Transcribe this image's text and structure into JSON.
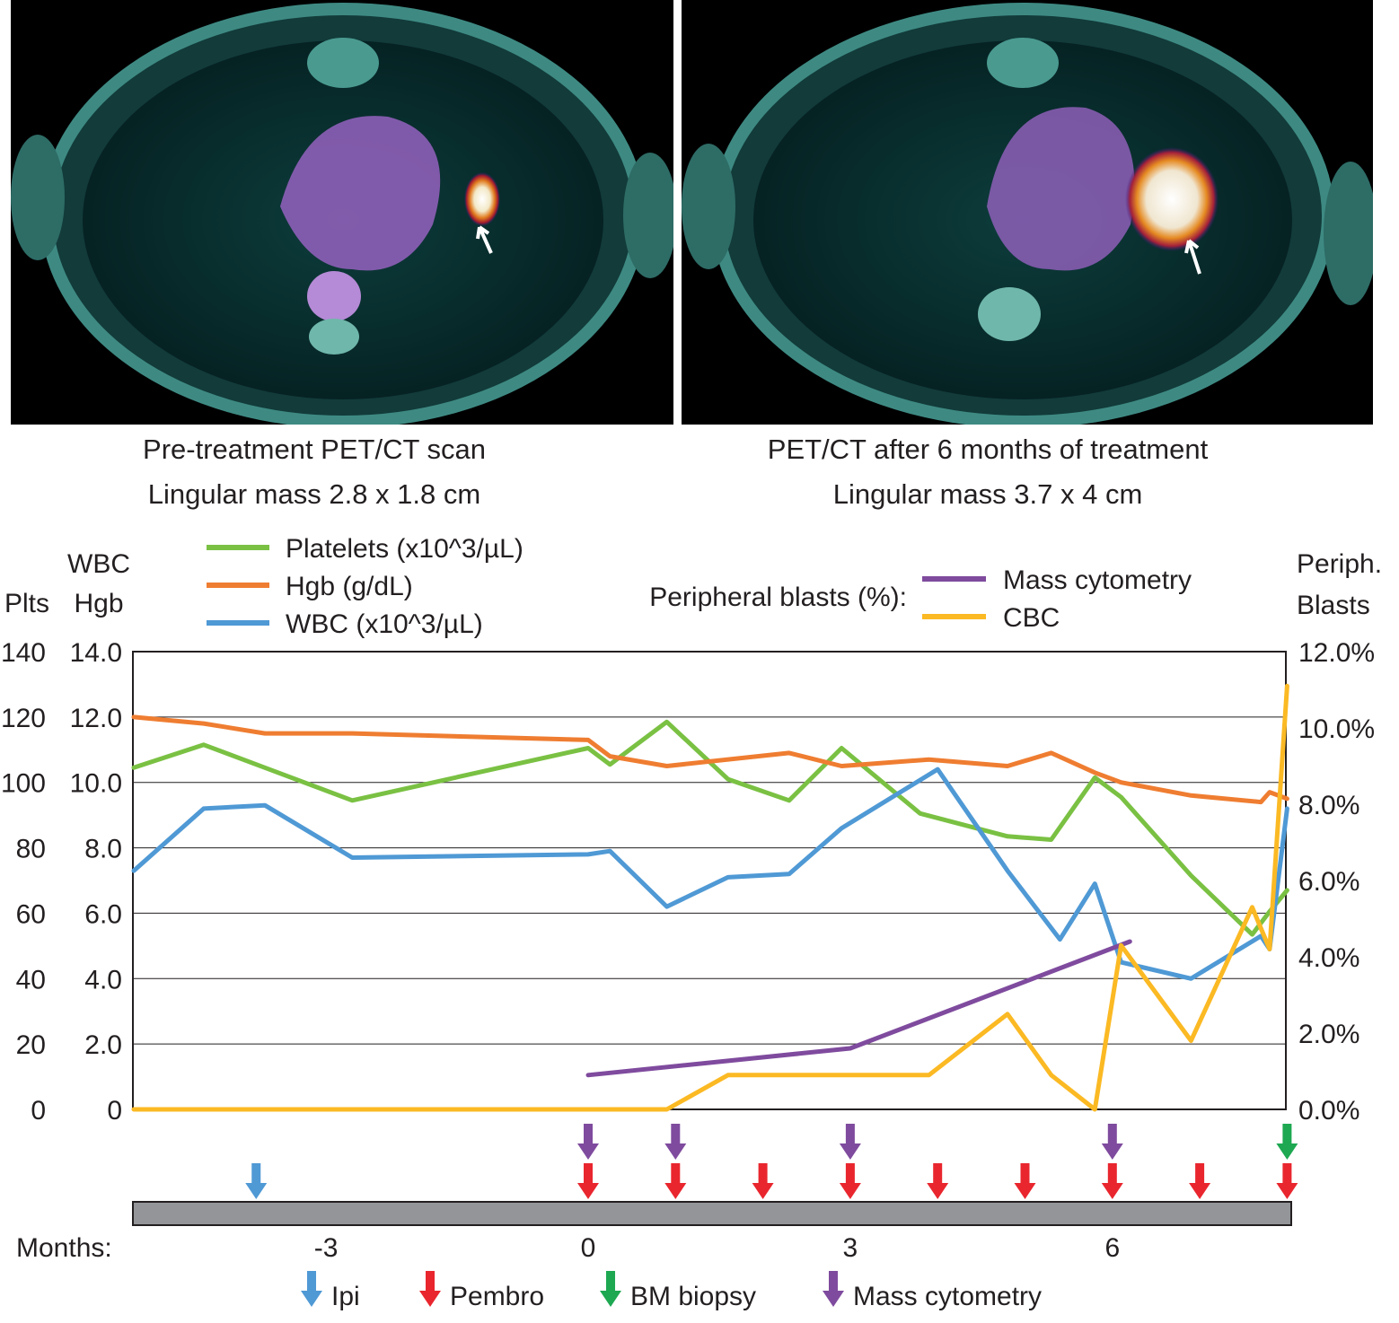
{
  "panels": [
    {
      "title": "Pre-treatment PET/CT scan",
      "subtitle": "Lingular mass 2.8 x 1.8 cm"
    },
    {
      "title": "PET/CT after 6 months of treatment",
      "subtitle": "Lingular mass 3.7 x 4 cm"
    }
  ],
  "chart_data": {
    "type": "line",
    "x_axis": {
      "label": "Months:",
      "ticks": [
        "-3",
        "0",
        "3",
        "6"
      ],
      "unit": "months"
    },
    "left_axes": [
      {
        "label_lines": [
          "Plts"
        ],
        "ticks": [
          "140",
          "120",
          "100",
          "80",
          "60",
          "40",
          "20",
          "0"
        ],
        "range": [
          0,
          140
        ]
      },
      {
        "label_lines": [
          "WBC",
          "Hgb"
        ],
        "ticks": [
          "14.0",
          "12.0",
          "10.0",
          "8.0",
          "6.0",
          "4.0",
          "2.0",
          "0"
        ],
        "range": [
          0,
          14
        ]
      }
    ],
    "right_axis": {
      "label_lines": [
        "Periph.",
        "Blasts"
      ],
      "ticks": [
        "12.0%",
        "10.0%",
        "8.0%",
        "6.0%",
        "4.0%",
        "2.0%",
        "0.0%"
      ],
      "range": [
        0,
        12
      ]
    },
    "grid": true,
    "legend_left": [
      {
        "name": "Platelets (x10^3/µL)",
        "color": "#7ac143"
      },
      {
        "name": "Hgb (g/dL)",
        "color": "#ef7d31"
      },
      {
        "name": "WBC (x10^3/µL)",
        "color": "#4f99d5"
      }
    ],
    "legend_right_title": "Peripheral blasts (%):",
    "legend_right": [
      {
        "name": "Mass cytometry",
        "color": "#7f4b9e"
      },
      {
        "name": "CBC",
        "color": "#fbb923"
      }
    ],
    "series": [
      {
        "key": "platelets",
        "axis": "plts",
        "color": "#7ac143",
        "x": [
          -5.2,
          -4.4,
          -3.7,
          -2.7,
          0,
          0.25,
          0.9,
          1.6,
          2.3,
          2.9,
          3.8,
          4.8,
          5.3,
          5.8,
          6.1,
          6.9,
          7.6,
          7.8,
          8.0
        ],
        "y": [
          104.5,
          111.5,
          104.5,
          94.5,
          110.5,
          105.5,
          118.5,
          101,
          94.5,
          110.5,
          90.5,
          83.5,
          82.5,
          101.5,
          95.5,
          71.5,
          53.5,
          60.5,
          67
        ]
      },
      {
        "key": "hgb",
        "axis": "hgb",
        "color": "#ef7d31",
        "x": [
          -5.2,
          -4.4,
          -3.7,
          -2.7,
          0,
          0.25,
          0.9,
          2.3,
          2.9,
          3.9,
          4.8,
          5.3,
          5.8,
          6.1,
          6.9,
          7.7,
          7.8,
          8.0
        ],
        "y": [
          12.0,
          11.8,
          11.5,
          11.5,
          11.3,
          10.8,
          10.5,
          10.9,
          10.5,
          10.7,
          10.5,
          10.9,
          10.3,
          10.0,
          9.6,
          9.4,
          9.7,
          9.5
        ]
      },
      {
        "key": "wbc",
        "axis": "wbc",
        "color": "#4f99d5",
        "x": [
          -5.2,
          -4.4,
          -3.7,
          -2.7,
          0,
          0.25,
          0.9,
          1.6,
          2.3,
          2.9,
          4.0,
          4.8,
          5.4,
          5.8,
          6.1,
          6.9,
          7.7,
          7.8,
          8.0
        ],
        "y": [
          7.3,
          9.2,
          9.3,
          7.7,
          7.8,
          7.9,
          6.2,
          7.1,
          7.2,
          8.6,
          10.4,
          7.3,
          5.2,
          6.9,
          4.5,
          4.0,
          5.3,
          4.9,
          9.2
        ]
      },
      {
        "key": "mass_cytometry",
        "axis": "blasts",
        "color": "#7f4b9e",
        "x": [
          0,
          3,
          6.2
        ],
        "y": [
          0.9,
          1.6,
          4.4
        ]
      },
      {
        "key": "cbc",
        "axis": "blasts",
        "color": "#fbb923",
        "x": [
          -5.2,
          0,
          0.9,
          1.6,
          2.3,
          3.0,
          3.9,
          4.8,
          5.3,
          5.8,
          6.1,
          6.9,
          7.6,
          7.8,
          8.0
        ],
        "y": [
          0,
          0,
          0,
          0.9,
          0.9,
          0.9,
          0.9,
          2.5,
          0.9,
          0,
          4.3,
          1.8,
          5.3,
          4.2,
          11.1
        ]
      }
    ],
    "events": {
      "ipi": [
        -3.8
      ],
      "pembro": [
        0,
        1,
        2,
        3,
        4,
        5,
        6,
        7,
        8
      ],
      "mass_cytometry": [
        0,
        1,
        3,
        6
      ],
      "bm_biopsy": [
        8
      ]
    },
    "event_legend": [
      {
        "key": "ipi",
        "label": "Ipi",
        "color": "#4f99d5"
      },
      {
        "key": "pembro",
        "label": "Pembro",
        "color": "#e9262e"
      },
      {
        "key": "bm_biopsy",
        "label": "BM biopsy",
        "color": "#1da851"
      },
      {
        "key": "mass_cytometry",
        "label": "Mass cytometry",
        "color": "#7f4b9e"
      }
    ]
  }
}
